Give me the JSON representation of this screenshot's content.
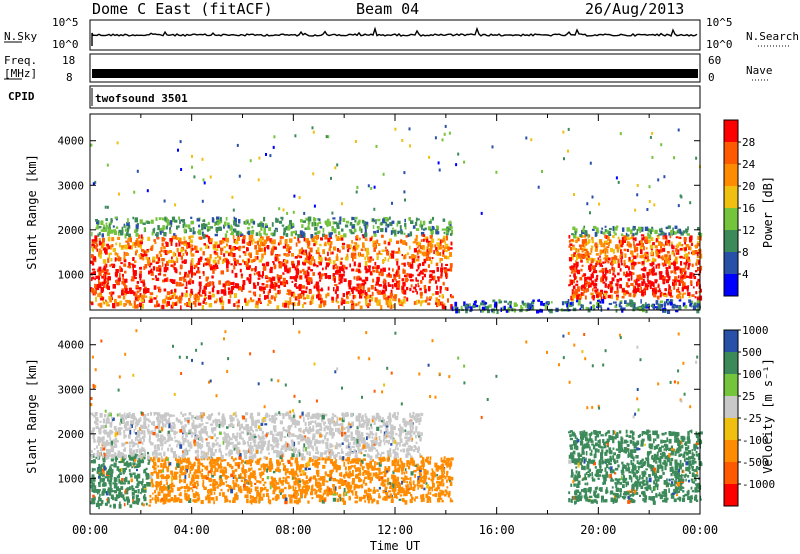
{
  "header": {
    "title": "Dome C East (fitACF)",
    "beam": "Beam 04",
    "date": "26/Aug/2013"
  },
  "strips": {
    "nsky_label": "N.Sky",
    "nsky_ticks": [
      "10^5",
      "10^0"
    ],
    "nsearch_label": "N.Search",
    "freq_label_1": "Freq.",
    "freq_label_2": "[MHz]",
    "freq_ticks": [
      "18",
      "8"
    ],
    "nave_ticks": [
      "60",
      "0"
    ],
    "nave_label": "Nave",
    "cpid_label": "CPID",
    "cpid_value": "twofsound 3501"
  },
  "colors": {
    "power_scale": [
      "#0000ff",
      "#2850a8",
      "#3c8a5a",
      "#74c43c",
      "#f0c010",
      "#ff8c00",
      "#ff5a00",
      "#ff0000"
    ],
    "velocity_scale": [
      "#ff0000",
      "#ff5a00",
      "#ff8c00",
      "#f0c010",
      "#c8c8c8",
      "#74c43c",
      "#3c8a5a",
      "#2850a8"
    ]
  },
  "chart_data": [
    {
      "type": "heatmap",
      "title": "",
      "xlabel": "",
      "ylabel": "Slant Range [km]",
      "xlim": [
        "00:00",
        "24:00"
      ],
      "ylim": [
        200,
        4600
      ],
      "yticks": [
        1000,
        2000,
        3000,
        4000
      ],
      "colorbar": {
        "label": "Power [dB]",
        "ticks": [
          "4",
          "8",
          "12",
          "16",
          "20",
          "24",
          "28"
        ],
        "range": [
          0,
          32
        ]
      },
      "regions": [
        {
          "t_start": 0.0,
          "t_end": 14.2,
          "range_start": 300,
          "range_end": 2300,
          "value_dB": 24,
          "note_level": "red core 600-1300 km"
        },
        {
          "t_start": 18.8,
          "t_end": 24.0,
          "range_start": 500,
          "range_end": 2100,
          "value_dB": 24
        },
        {
          "t_start": 14.2,
          "t_end": 24.0,
          "range_start": 200,
          "range_end": 450,
          "value_dB": 8
        }
      ]
    },
    {
      "type": "heatmap",
      "title": "",
      "xlabel": "Time UT",
      "ylabel": "Slant Range [km]",
      "xlim": [
        "00:00",
        "24:00"
      ],
      "xticks": [
        "00:00",
        "04:00",
        "08:00",
        "12:00",
        "16:00",
        "20:00",
        "00:00"
      ],
      "ylim": [
        200,
        4600
      ],
      "yticks": [
        1000,
        2000,
        3000,
        4000
      ],
      "colorbar": {
        "label": "Velocity [m s⁻¹]",
        "ticks": [
          "-1000",
          "-500",
          "-100",
          "-25",
          "25",
          "100",
          "500",
          "1000"
        ]
      },
      "regions": [
        {
          "t_start": 0.0,
          "t_end": 2.3,
          "range_start": 400,
          "range_end": 1600,
          "value_mps": 300
        },
        {
          "t_start": 2.3,
          "t_end": 14.2,
          "range_start": 500,
          "range_end": 1500,
          "value_mps": -200
        },
        {
          "t_start": 0.0,
          "t_end": 13.0,
          "range_start": 1500,
          "range_end": 2500,
          "value_mps": 0
        },
        {
          "t_start": 18.8,
          "t_end": 24.0,
          "range_start": 500,
          "range_end": 2100,
          "value_mps": 300
        }
      ]
    }
  ]
}
